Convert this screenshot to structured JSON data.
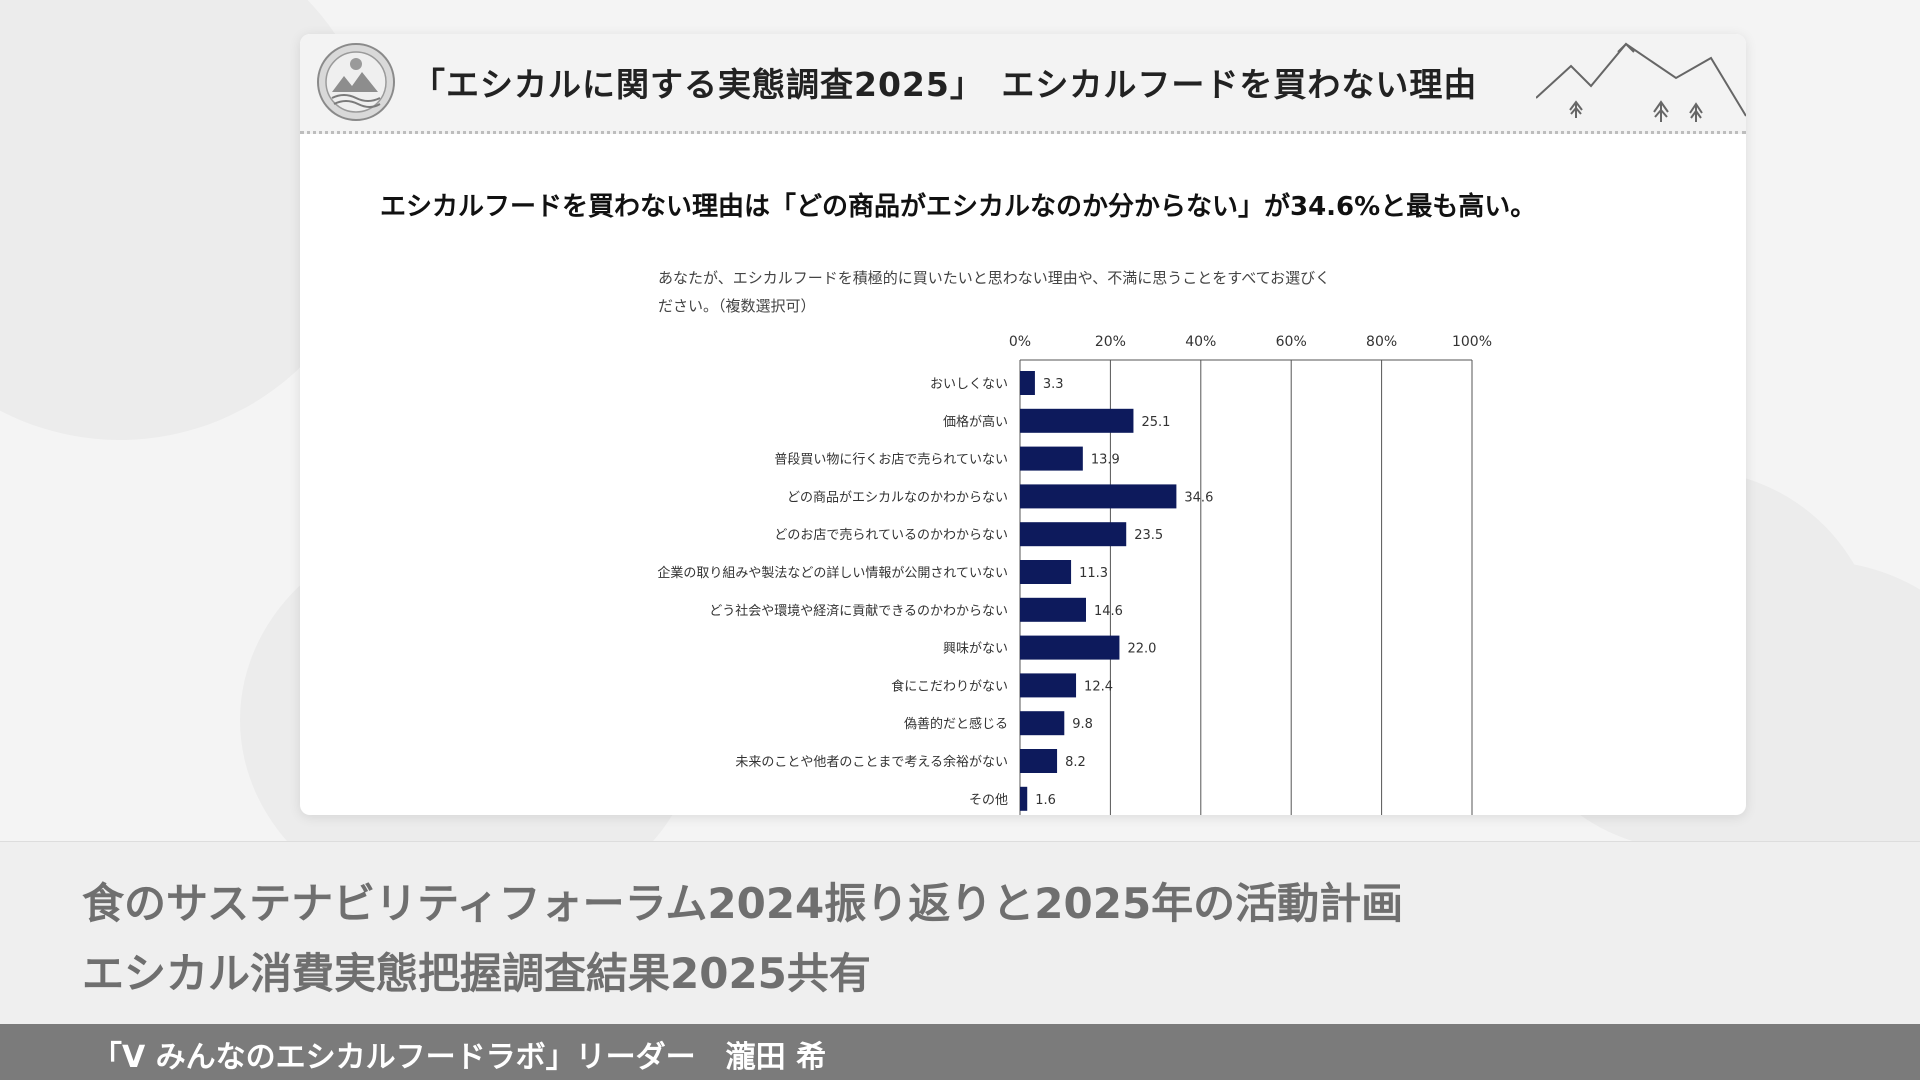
{
  "slide": {
    "header_title": "「エシカルに関する実態調査2025」　エシカルフードを買わない理由",
    "headline": "エシカルフードを買わない理由は「どの商品がエシカルなのか分からない」が34.6%と最も高い。",
    "question_line1": "あなたが、エシカルフードを積極的に買いたいと思わない理由や、不満に思うことをすべてお選びく",
    "question_line2": "ださい。（複数選択可）"
  },
  "chart_data": {
    "type": "bar",
    "orientation": "horizontal",
    "title": "",
    "xlabel": "",
    "ylabel": "",
    "xlim": [
      0,
      100
    ],
    "ticks": [
      "0%",
      "20%",
      "40%",
      "60%",
      "80%",
      "100%"
    ],
    "categories": [
      "おいしくない",
      "価格が高い",
      "普段買い物に行くお店で売られていない",
      "どの商品がエシカルなのかわからない",
      "どのお店で売られているのかわからない",
      "企業の取り組みや製法などの詳しい情報が公開されていない",
      "どう社会や環境や経済に貢献できるのかわからない",
      "興味がない",
      "食にこだわりがない",
      "偽善的だと感じる",
      "未来のことや他者のことまで考える余裕がない",
      "その他"
    ],
    "values": [
      3.3,
      25.1,
      13.9,
      34.6,
      23.5,
      11.3,
      14.6,
      22.0,
      12.4,
      9.8,
      8.2,
      1.6
    ],
    "value_labels": [
      "3.3",
      "25.1",
      "13.9",
      "34.6",
      "23.5",
      "11.3",
      "14.6",
      "22.0",
      "12.4",
      "9.8",
      "8.2",
      "1.6"
    ],
    "grid": true,
    "colors": {
      "bar": "#0d1a5c",
      "grid": "#555555"
    }
  },
  "footer": {
    "line1": "食のサステナビリティフォーラム2024振り返りと2025年の活動計画",
    "line2": "エシカル消費実態把握調査結果2025共有"
  },
  "presenter": "「V みんなのエシカルフードラボ」リーダー　瀧田 希",
  "icons": {
    "logo": "circular-nature-logo-icon",
    "decoration": "mountain-trees-icon"
  }
}
